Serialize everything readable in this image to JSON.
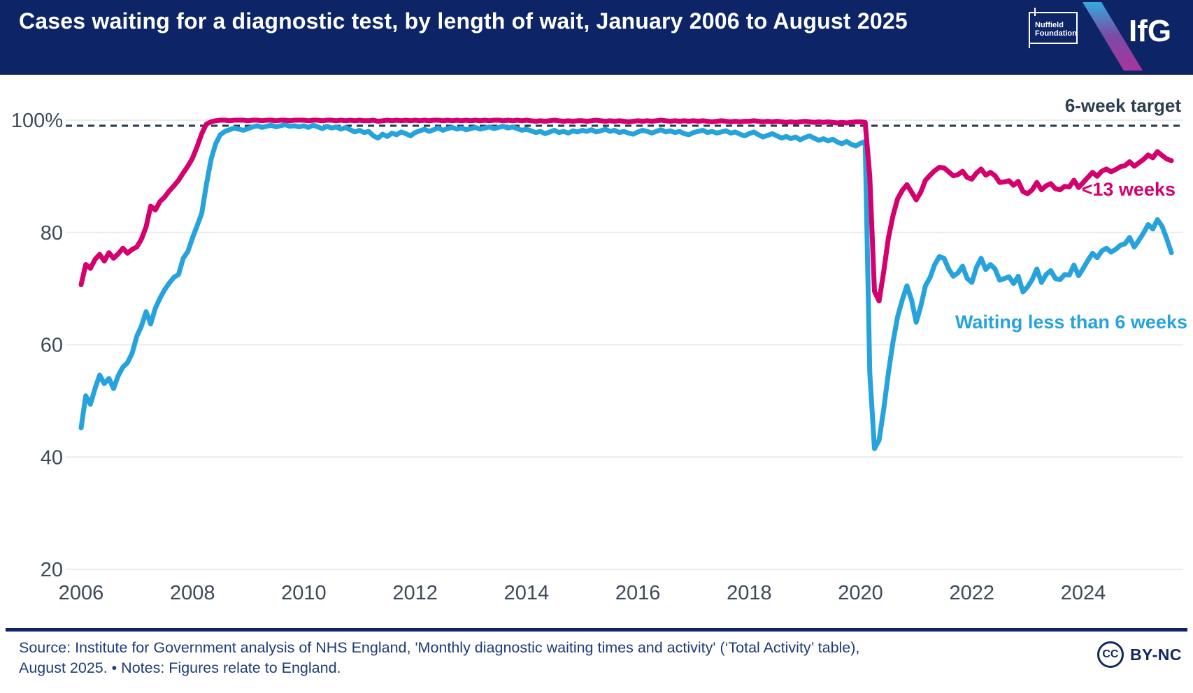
{
  "header": {
    "title": "Cases waiting for a diagnostic test, by length of wait, January 2006 to August 2025",
    "nuffield_line1": "Nuffield",
    "nuffield_line2": "Foundation",
    "ifg_logo": "IfG"
  },
  "colors": {
    "navy": "#0d2566",
    "pink": "#d4006d",
    "blue": "#26a3dc",
    "axis_text": "#3e4a5a",
    "grid": "#ebebeb",
    "dashed": "#25374b",
    "footer_text": "#1e3c78"
  },
  "chart_data": {
    "type": "line",
    "x_unit": "month",
    "x_start": "2006-01",
    "x_end": "2025-08",
    "x_ticks": [
      2006,
      2008,
      2010,
      2012,
      2014,
      2016,
      2018,
      2020,
      2022,
      2024
    ],
    "y_ticks": {
      "labels": [
        "100%",
        "80",
        "60",
        "40",
        "20"
      ],
      "values": [
        100,
        80,
        60,
        40,
        20
      ]
    },
    "ylim": [
      20,
      100
    ],
    "grid": true,
    "legend_position": "inline-right",
    "target_line": {
      "label": "6-week target",
      "value": 99,
      "style": "dashed"
    },
    "series": [
      {
        "name": "<13 weeks",
        "color": "#d4006d",
        "values": [
          70.7,
          74.3,
          73.6,
          75.2,
          76.1,
          74.9,
          76.4,
          75.4,
          76.2,
          77.2,
          76.3,
          77.0,
          77.4,
          78.8,
          81.0,
          84.7,
          84.0,
          85.5,
          86.3,
          87.4,
          88.3,
          89.3,
          90.6,
          91.8,
          93.2,
          95.3,
          97.6,
          99.3,
          99.7,
          99.9,
          100,
          100,
          99.9,
          100,
          100,
          100,
          99.9,
          100,
          100,
          99.9,
          100,
          100,
          99.9,
          100,
          100,
          99.9,
          100,
          100,
          100,
          99.9,
          100,
          100,
          99.9,
          100,
          100,
          99.9,
          100,
          99.9,
          100,
          99.9,
          100,
          99.9,
          99.9,
          100,
          99.8,
          99.9,
          100,
          99.9,
          100,
          99.9,
          100,
          99.9,
          100,
          99.9,
          100,
          99.9,
          100,
          100,
          99.9,
          100,
          99.9,
          100,
          99.9,
          100,
          99.9,
          100,
          99.9,
          100,
          99.9,
          100,
          100,
          99.9,
          100,
          99.9,
          100,
          99.9,
          100,
          99.9,
          99.8,
          99.9,
          99.8,
          99.9,
          100,
          99.9,
          99.8,
          99.9,
          99.8,
          99.9,
          99.9,
          99.8,
          99.9,
          100,
          99.9,
          99.8,
          99.9,
          99.8,
          99.9,
          99.8,
          99.7,
          99.8,
          99.9,
          99.8,
          99.9,
          99.8,
          99.9,
          100,
          99.9,
          99.8,
          99.9,
          99.8,
          99.9,
          99.8,
          99.9,
          99.8,
          99.9,
          99.8,
          99.7,
          99.8,
          99.9,
          99.8,
          99.7,
          99.8,
          99.7,
          99.8,
          99.8,
          99.9,
          99.8,
          99.7,
          99.8,
          99.7,
          99.8,
          99.7,
          99.6,
          99.7,
          99.6,
          99.7,
          99.8,
          99.7,
          99.6,
          99.7,
          99.6,
          99.7,
          99.6,
          99.5,
          99.6,
          99.5,
          99.6,
          99.7,
          99.7,
          99.6,
          90.0,
          69.5,
          67.8,
          73.0,
          79.0,
          83.0,
          86.0,
          87.5,
          88.5,
          87.2,
          85.8,
          87.2,
          89.3,
          90.2,
          91.0,
          91.6,
          91.5,
          90.8,
          90.1,
          90.3,
          90.9,
          89.8,
          89.5,
          90.6,
          91.3,
          90.2,
          90.7,
          90.1,
          88.9,
          89.0,
          89.2,
          88.4,
          89.1,
          87.3,
          86.9,
          87.6,
          88.9,
          87.6,
          88.3,
          88.7,
          87.8,
          87.6,
          88.2,
          88.1,
          89.3,
          88.0,
          88.9,
          89.8,
          90.7,
          90.0,
          90.9,
          91.3,
          90.8,
          91.2,
          91.7,
          91.9,
          92.6,
          91.8,
          92.4,
          93.0,
          93.8,
          93.3,
          94.4,
          93.7,
          93.1,
          92.8
        ]
      },
      {
        "name": "Waiting less than 6 weeks",
        "color": "#26a3dc",
        "values": [
          45.2,
          50.9,
          49.4,
          52.2,
          54.6,
          53.1,
          54.0,
          52.2,
          54.5,
          56.0,
          56.8,
          58.5,
          61.5,
          63.3,
          65.9,
          63.7,
          66.5,
          68.3,
          69.8,
          71.0,
          72.0,
          72.5,
          75.4,
          76.6,
          79.0,
          81.2,
          83.4,
          88.5,
          93.0,
          95.8,
          97.4,
          98.0,
          98.3,
          98.6,
          98.4,
          98.2,
          98.5,
          98.8,
          99.0,
          98.7,
          98.9,
          99.1,
          98.8,
          99.0,
          99.2,
          98.9,
          99.0,
          98.8,
          99.0,
          98.7,
          99.1,
          98.8,
          98.5,
          98.9,
          98.6,
          98.8,
          98.4,
          98.7,
          98.3,
          97.9,
          98.2,
          97.8,
          98.0,
          97.2,
          96.8,
          97.5,
          97.1,
          97.7,
          97.4,
          97.9,
          97.6,
          97.2,
          97.8,
          98.1,
          98.4,
          98.0,
          98.3,
          98.6,
          98.2,
          98.5,
          98.7,
          98.4,
          98.6,
          98.3,
          98.5,
          98.7,
          98.4,
          98.6,
          98.8,
          98.5,
          98.7,
          98.9,
          98.6,
          98.8,
          98.5,
          98.2,
          98.4,
          98.1,
          97.8,
          98.0,
          97.6,
          97.9,
          98.2,
          97.8,
          98.0,
          97.7,
          98.1,
          97.9,
          98.2,
          98.0,
          98.3,
          97.9,
          98.1,
          98.4,
          98.0,
          98.2,
          97.8,
          98.0,
          97.7,
          97.5,
          97.9,
          98.2,
          98.0,
          97.7,
          98.0,
          98.3,
          97.9,
          98.1,
          97.8,
          98.0,
          97.6,
          97.4,
          97.8,
          98.0,
          98.2,
          97.8,
          98.0,
          97.7,
          97.9,
          98.1,
          97.7,
          97.9,
          97.5,
          97.2,
          97.6,
          97.9,
          97.4,
          97.0,
          97.3,
          97.6,
          97.2,
          96.8,
          97.1,
          96.7,
          97.0,
          96.5,
          96.9,
          97.2,
          96.8,
          96.4,
          96.7,
          96.3,
          96.6,
          96.1,
          95.8,
          96.2,
          95.7,
          95.4,
          95.9,
          96.2,
          55.0,
          41.5,
          43.0,
          48.5,
          55.0,
          60.5,
          65.0,
          68.0,
          70.5,
          68.0,
          64.0,
          66.9,
          70.5,
          72.0,
          74.3,
          75.7,
          75.4,
          73.5,
          72.2,
          72.8,
          74.0,
          71.8,
          71.1,
          73.8,
          75.4,
          73.4,
          74.3,
          73.5,
          71.5,
          71.8,
          72.1,
          70.9,
          72.2,
          69.4,
          70.3,
          71.6,
          73.5,
          71.1,
          72.5,
          73.2,
          71.8,
          71.6,
          72.5,
          72.4,
          74.2,
          72.3,
          73.6,
          75.0,
          76.3,
          75.5,
          76.7,
          77.2,
          76.5,
          77.0,
          77.7,
          78.0,
          79.1,
          77.4,
          78.6,
          79.9,
          81.4,
          80.6,
          82.3,
          81.1,
          78.9,
          76.4
        ]
      }
    ]
  },
  "footer": {
    "source_line1": "Source: Institute for Government analysis of NHS England, 'Monthly diagnostic waiting times and activity' (‘Total Activity’ table),",
    "source_line2": "August 2025. • Notes: Figures relate to England.",
    "cc_text": "CC",
    "license_label": "BY-NC"
  }
}
